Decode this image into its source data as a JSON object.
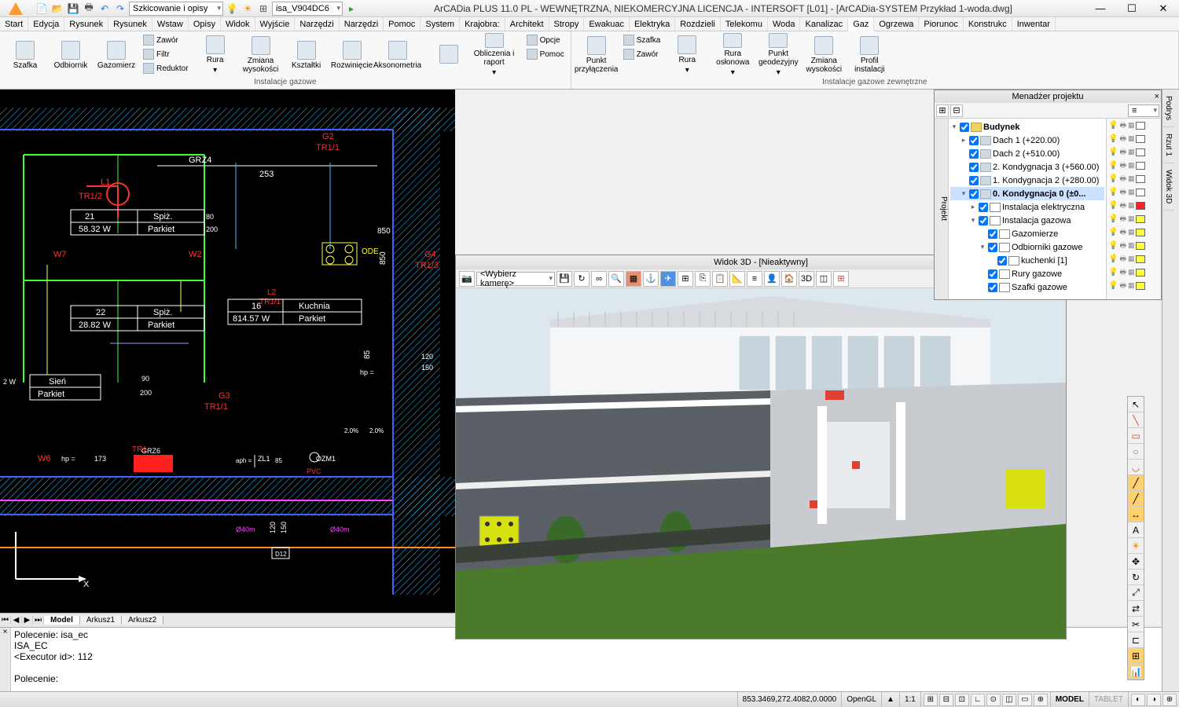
{
  "app": {
    "title": "ArCADia PLUS 11.0 PL - WEWNĘTRZNA, NIEKOMERCYJNA LICENCJA - INTERSOFT [L01] - [ArCADia-SYSTEM Przykład 1-woda.dwg]",
    "sketch_combo": "Szkicowanie i opisy",
    "file_combo": "isa_V904DC6"
  },
  "menu": [
    "Start",
    "Edycja",
    "Rysunek",
    "Rysunek",
    "Wstaw",
    "Opisy",
    "Widok",
    "Wyjście",
    "Narzędzi",
    "Narzędzi",
    "Pomoc",
    "System",
    "Krajobra:",
    "Architekt",
    "Stropy",
    "Ewakuac",
    "Elektryka",
    "Rozdzieli",
    "Telekomu",
    "Woda",
    "Kanalizac",
    "Gaz",
    "Ogrzewa",
    "Piorunoc",
    "Konstrukc",
    "Inwentar"
  ],
  "menu_active": "Gaz",
  "ribbon": {
    "g1": {
      "label": "Instalacje gazowe",
      "btns": [
        "Szafka",
        "Odbiornik",
        "Gazomierz"
      ],
      "small": [
        "Zawór",
        "Filtr",
        "Reduktor"
      ],
      "btns2": [
        "Rura",
        "Zmiana wysokości",
        "Kształtki",
        "Rozwinięcie",
        "Aksonometria"
      ],
      "small2": [
        "",
        "Obliczenia i raport"
      ],
      "small3": [
        "Opcje",
        "Pomoc"
      ]
    },
    "g2": {
      "label": "Instalacje gazowe zewnętrzne",
      "btns": [
        "Punkt przyłączenia"
      ],
      "small": [
        "Szafka",
        "Zawór"
      ],
      "btns2": [
        "Rura",
        "Rura osłonowa",
        "Punkt geodezyjny",
        "Zmiana wysokości",
        "Profil instalacji"
      ]
    }
  },
  "vp2d": {
    "labels": {
      "grz4": "GRZ4",
      "d253": "253",
      "d850": "850",
      "g2": "G2",
      "tr11a": "TR1/1",
      "l1": "L1",
      "tr12": "TR1/2",
      "w7": "W7",
      "b21": "21",
      "spiz1": "Spiż.",
      "v58": "58.32 W",
      "park1": "Parkiet",
      "d200a": "200",
      "d80": "80",
      "w2": "W2",
      "g4": "G4",
      "tr13": "TR1/3",
      "ode": "ODE",
      "b22": "22",
      "spiz2": "Spiż.",
      "v28": "28.82 W",
      "park2": "Parkiet",
      "l2": "L2",
      "tr11b": "TR1/1",
      "b16": "16",
      "kuch": "Kuchnia",
      "v814": "814.57 W",
      "park3": "Parkiet",
      "d85": "85",
      "hp": "hp =",
      "d120": "120",
      "d150": "150",
      "sien": "Sień",
      "ew": "2 W",
      "park4": "Parkiet",
      "d90": "90",
      "d200b": "200",
      "g3": "G3",
      "tr11c": "TR1/1",
      "w6": "W6",
      "hp2": "hp =",
      "d173": "173",
      "tr1": "TR1",
      "grz6": "GRZ6",
      "zl1": "ZL1",
      "aph": "aph =",
      "d85b": "85",
      "ozm1": "OZM1",
      "pvc": "PVC",
      "d40m": "Ø40m",
      "d40m2": "Ø40m",
      "d120b": "120",
      "d150b": "150",
      "d12": "D12",
      "arrX": "X",
      "pct2a": "2.0%",
      "pct2b": "2.0%"
    },
    "colors": {
      "white": "#ffffff",
      "red": "#ff3030",
      "cyan": "#40c0ff",
      "blue": "#4060ff",
      "yellow": "#ffff40",
      "green": "#40ff40",
      "magenta": "#ff40ff",
      "orange": "#ff9020",
      "redfill": "#ff2020"
    }
  },
  "sheets": {
    "active": "Model",
    "tabs": [
      "Model",
      "Arkusz1",
      "Arkusz2"
    ]
  },
  "cmd": {
    "l1": "Polecenie: isa_ec",
    "l2": "ISA_EC",
    "l3": "<Executor id>: 112",
    "l4": "Polecenie:"
  },
  "vp3d": {
    "title": "Widok 3D - [Nieaktywny]",
    "camera": "<Wybierz kamerę>",
    "colors": {
      "sky": "#dde8ee",
      "wall": "#5a6066",
      "wall2": "#c8ccd0",
      "grass1": "#6a9a3a",
      "grass2": "#4a7a2a",
      "accent": "#d8e010",
      "red": "#e04030",
      "white": "#f4f6f8"
    }
  },
  "projmgr": {
    "title": "Menadżer projektu",
    "side": "Projekt",
    "tree": [
      {
        "ind": 0,
        "exp": "▾",
        "chk": true,
        "ico": "bld",
        "lbl": "Budynek",
        "bold": true
      },
      {
        "ind": 1,
        "exp": "▸",
        "chk": true,
        "ico": "level",
        "lbl": "Dach 1 (+220.00)"
      },
      {
        "ind": 1,
        "exp": "",
        "chk": true,
        "ico": "level",
        "lbl": "Dach 2 (+510.00)"
      },
      {
        "ind": 1,
        "exp": "",
        "chk": true,
        "ico": "level",
        "lbl": "2. Kondygnacja 3 (+560.00)"
      },
      {
        "ind": 1,
        "exp": "",
        "chk": true,
        "ico": "level",
        "lbl": "1. Kondygnacja 2 (+280.00)"
      },
      {
        "ind": 1,
        "exp": "▾",
        "chk": true,
        "ico": "level",
        "lbl": "0. Kondygnacja 0 (±0...",
        "bold": true,
        "sel": true
      },
      {
        "ind": 2,
        "exp": "▸",
        "chk": true,
        "ico": "inst",
        "lbl": "Instalacja elektryczna",
        "sw": "#ff2020"
      },
      {
        "ind": 2,
        "exp": "▾",
        "chk": true,
        "ico": "inst",
        "lbl": "Instalacja gazowa",
        "sw": "#ffff40"
      },
      {
        "ind": 3,
        "exp": "",
        "chk": true,
        "ico": "inst",
        "lbl": "Gazomierze",
        "sw": "#ffff40"
      },
      {
        "ind": 3,
        "exp": "▾",
        "chk": true,
        "ico": "inst",
        "lbl": "Odbiorniki gazowe",
        "sw": "#ffff40"
      },
      {
        "ind": 4,
        "exp": "",
        "chk": true,
        "ico": "inst",
        "lbl": "kuchenki [1]",
        "sw": "#ffff40"
      },
      {
        "ind": 3,
        "exp": "",
        "chk": true,
        "ico": "inst",
        "lbl": "Rury gazowe",
        "sw": "#ffff40"
      },
      {
        "ind": 3,
        "exp": "",
        "chk": true,
        "ico": "inst",
        "lbl": "Szafki gazowe",
        "sw": "#ffff40"
      }
    ]
  },
  "side_tabs": [
    "Podrys",
    "Rzut 1",
    "Widok 3D"
  ],
  "status": {
    "coords": "853.3469,272.4082,0.0000",
    "gl": "OpenGL",
    "scale": "1:1",
    "model": "MODEL",
    "tablet": "TABLET"
  }
}
